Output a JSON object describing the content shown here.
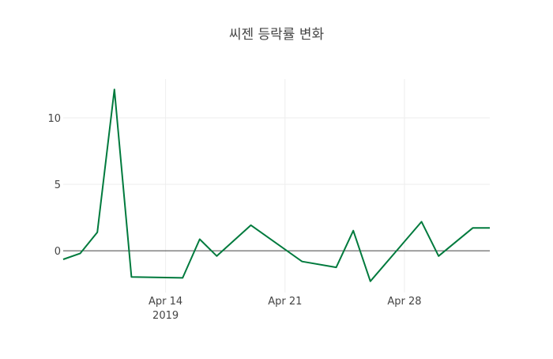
{
  "chart_data": {
    "type": "line",
    "title": "씨젠 등락률 변화",
    "xlabel": "",
    "ylabel": "",
    "x": [
      "2019-04-08",
      "2019-04-09",
      "2019-04-10",
      "2019-04-11",
      "2019-04-12",
      "2019-04-15",
      "2019-04-16",
      "2019-04-17",
      "2019-04-19",
      "2019-04-22",
      "2019-04-24",
      "2019-04-25",
      "2019-04-26",
      "2019-04-29",
      "2019-04-30",
      "2019-05-02",
      "2019-05-03"
    ],
    "series": [
      {
        "name": "등락률",
        "color": "#007a3d",
        "values": [
          -0.65,
          -0.2,
          1.39,
          12.14,
          -1.98,
          -2.04,
          0.87,
          -0.4,
          1.92,
          -0.81,
          -1.25,
          1.51,
          -2.3,
          2.18,
          -0.4,
          1.71,
          1.71
        ]
      }
    ],
    "xlim": [
      "2019-04-08",
      "2019-05-03"
    ],
    "ylim": [
      -3.15,
      12.92
    ],
    "yticks": [
      0,
      5,
      10
    ],
    "ytick_labels": [
      "0",
      "5",
      "10"
    ],
    "xticks": [
      "2019-04-14",
      "2019-04-21",
      "2019-04-28"
    ],
    "xtick_labels": [
      "Apr 14",
      "Apr 21",
      "Apr 28"
    ],
    "xtick_sublabel": "2019",
    "grid": true,
    "legend": "none"
  }
}
